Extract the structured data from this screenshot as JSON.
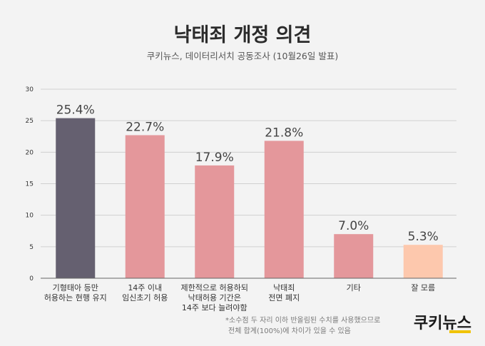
{
  "header": {
    "title": "낙태죄 개정 의견",
    "subtitle": "쿠키뉴스, 데이터리서치 공동조사 (10월26일 발표)"
  },
  "footnote": {
    "line1": "*소수점 두 자리 이하 반올림된 수치를 사용했으므로",
    "line2": "전체 합계(100%)에 차이가 있을 수 있음"
  },
  "logo": {
    "text": "쿠키뉴스",
    "accent_color": "#f0c300"
  },
  "colors": {
    "highlight": "#656070",
    "default": "#e4979b",
    "light": "#fdc8ad",
    "grid": "#d0d0d0",
    "axis": "#666666"
  },
  "chart_data": {
    "type": "bar",
    "ylim": [
      0,
      30
    ],
    "yticks": [
      0,
      5,
      10,
      15,
      20,
      25,
      30
    ],
    "grid": true,
    "categories": [
      [
        "기형태아 등만",
        "허용하는 현행 유지"
      ],
      [
        "14주 이내",
        "임신초기 허용"
      ],
      [
        "제한적으로 허용하되",
        "낙태허용 기간은",
        "14주 보다 늘려야함"
      ],
      [
        "낙태죄",
        "전면 폐지"
      ],
      [
        "기타"
      ],
      [
        "잘 모름"
      ]
    ],
    "values": [
      25.4,
      22.7,
      17.9,
      21.8,
      7.0,
      5.3
    ],
    "value_labels": [
      "25.4%",
      "22.7%",
      "17.9%",
      "21.8%",
      "7.0%",
      "5.3%"
    ],
    "bar_colors": [
      "highlight",
      "default",
      "default",
      "default",
      "default",
      "light"
    ]
  }
}
